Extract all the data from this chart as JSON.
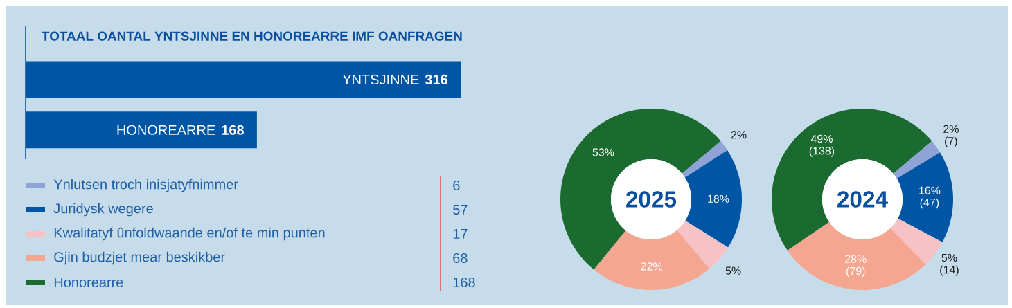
{
  "chart_data": [
    {
      "type": "bar",
      "orientation": "horizontal",
      "title": "TOTAAL OANTAL YNTSJINNE EN HONOREARRE IMF OANFRAGEN",
      "categories": [
        "YNTSJINNE",
        "HONOREARRE"
      ],
      "values": [
        316,
        168
      ],
      "color": "#0055a5",
      "data_labels": true
    },
    {
      "type": "other",
      "categories": [
        "Ynlutsen troch inisjatyfnimmer",
        "Juridysk wegere",
        "Kwalitatyf ûnfoldwaande en/of te min punten",
        "Gjin budzjet mear beskikber",
        "Honorearre"
      ],
      "values": [
        6,
        57,
        17,
        68,
        168
      ],
      "colors": [
        "#8fa3d6",
        "#0055a5",
        "#f7c2c4",
        "#f4a690",
        "#1b6a30"
      ],
      "data_labels": true
    },
    {
      "type": "donut",
      "title": "2025",
      "categories": [
        null,
        null,
        null,
        null,
        null
      ],
      "values": [
        2,
        18,
        5,
        22,
        53
      ],
      "colors": [
        "#8fa3d6",
        "#0055a5",
        "#f7c2c4",
        "#f4a690",
        "#1b6a30"
      ],
      "value_labels": [
        "2%",
        "18%",
        "5%",
        "22%",
        "53%"
      ]
    },
    {
      "type": "donut",
      "title": "2024",
      "categories": [
        null,
        null,
        null,
        null,
        null
      ],
      "values": [
        7,
        47,
        14,
        79,
        138
      ],
      "colors": [
        "#8fa3d6",
        "#0055a5",
        "#f7c2c4",
        "#f4a690",
        "#1b6a30"
      ],
      "value_labels": [
        "2% (7)",
        "16% (47)",
        "5% (14)",
        "28% (79)",
        "49% (138)"
      ]
    }
  ]
}
